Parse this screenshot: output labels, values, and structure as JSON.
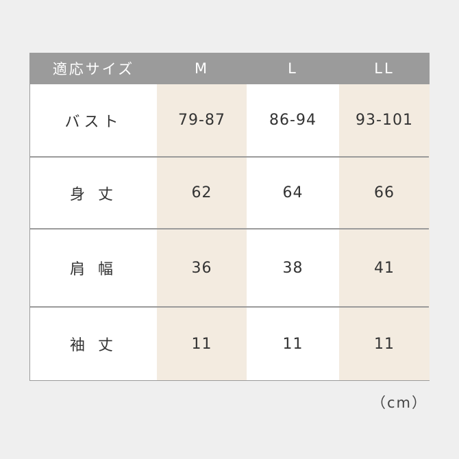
{
  "header": {
    "label": "適応サイズ",
    "sizes": [
      "M",
      "L",
      "LL"
    ]
  },
  "rows": [
    {
      "label": "バスト",
      "values": [
        "79-87",
        "86-94",
        "93-101"
      ]
    },
    {
      "label": "身 丈",
      "values": [
        "62",
        "64",
        "66"
      ]
    },
    {
      "label": "肩 幅",
      "values": [
        "36",
        "38",
        "41"
      ]
    },
    {
      "label": "袖 丈",
      "values": [
        "11",
        "11",
        "11"
      ]
    }
  ],
  "unit": "（cm）",
  "colors": {
    "background": "#efefef",
    "header": "#9b9b9b",
    "highlight_column": "#f3ebe0",
    "border": "#9a9a9a"
  }
}
